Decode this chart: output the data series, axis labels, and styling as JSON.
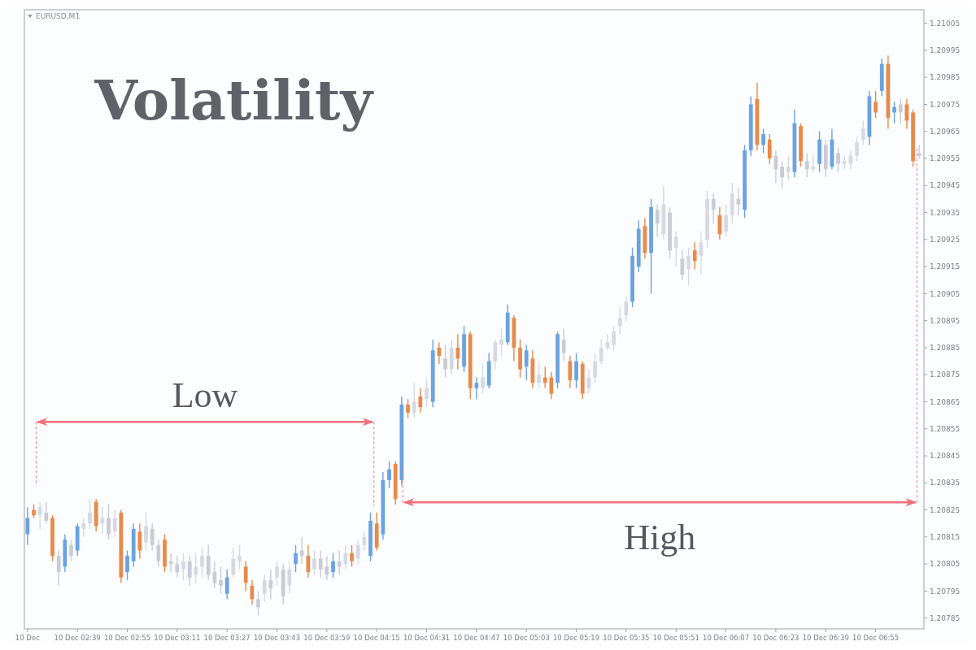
{
  "chart_data": {
    "type": "candlestick",
    "title": "Volatility",
    "subtitle": "EURUSD,M1",
    "annotations": [
      "Low",
      "High"
    ],
    "categories": [
      "10 Dec",
      null,
      null,
      null,
      null,
      null,
      null,
      null,
      "10 Dec 02:39",
      null,
      null,
      null,
      null,
      null,
      null,
      null,
      "10 Dec 02:55",
      null,
      null,
      null,
      null,
      null,
      null,
      null,
      "10 Dec 03:11",
      null,
      null,
      null,
      null,
      null,
      null,
      null,
      "10 Dec 03:27",
      null,
      null,
      null,
      null,
      null,
      null,
      null,
      "10 Dec 03:43",
      null,
      null,
      null,
      null,
      null,
      null,
      null,
      "10 Dec 03:59",
      null,
      null,
      null,
      null,
      null,
      null,
      null,
      "10 Dec 04:15",
      null,
      null,
      null,
      null,
      null,
      null,
      null,
      "10 Dec 04:31",
      null,
      null,
      null,
      null,
      null,
      null,
      null,
      "10 Dec 04:47",
      null,
      null,
      null,
      null,
      null,
      null,
      null,
      "10 Dec 05:03",
      null,
      null,
      null,
      null,
      null,
      null,
      null,
      "10 Dec 05:19",
      null,
      null,
      null,
      null,
      null,
      null,
      null,
      "10 Dec 05:35",
      null,
      null,
      null,
      null,
      null,
      null,
      null,
      "10 Dec 05:51",
      null,
      null,
      null,
      null,
      null,
      null,
      null,
      "10 Dec 06:07",
      null,
      null,
      null,
      null,
      null,
      null,
      null,
      "10 Dec 06:23",
      null,
      null,
      null,
      null,
      null,
      null,
      null,
      "10 Dec 06:39",
      null,
      null,
      null,
      null,
      null,
      null,
      null,
      "10 Dec 06:55",
      null,
      null,
      null,
      null,
      null,
      null,
      null
    ],
    "ohlc": [
      [
        1.20816,
        1.20826,
        1.20812,
        1.20822
      ],
      [
        1.20825,
        1.20827,
        1.20822,
        1.20823
      ],
      [
        1.20823,
        1.20828,
        1.20818,
        1.20826
      ],
      [
        1.20824,
        1.20828,
        1.2082,
        1.20821
      ],
      [
        1.20822,
        1.20823,
        1.20806,
        1.20808
      ],
      [
        1.20808,
        1.2081,
        1.20797,
        1.20802
      ],
      [
        1.20804,
        1.20816,
        1.20802,
        1.20814
      ],
      [
        1.20812,
        1.20814,
        1.20806,
        1.20808
      ],
      [
        1.2081,
        1.2082,
        1.20808,
        1.20819
      ],
      [
        1.20818,
        1.20822,
        1.20815,
        1.2082
      ],
      [
        1.2082,
        1.20829,
        1.20818,
        1.20824
      ],
      [
        1.20828,
        1.20829,
        1.20817,
        1.20819
      ],
      [
        1.2082,
        1.20826,
        1.20816,
        1.20822
      ],
      [
        1.20822,
        1.20827,
        1.20814,
        1.20816
      ],
      [
        1.20817,
        1.20825,
        1.20815,
        1.20822
      ],
      [
        1.20824,
        1.20825,
        1.20798,
        1.208
      ],
      [
        1.20802,
        1.2081,
        1.20799,
        1.20808
      ],
      [
        1.20806,
        1.2082,
        1.20804,
        1.20818
      ],
      [
        1.20817,
        1.2082,
        1.20807,
        1.2081
      ],
      [
        1.20813,
        1.20824,
        1.2081,
        1.20819
      ],
      [
        1.20818,
        1.2082,
        1.2081,
        1.20812
      ],
      [
        1.20812,
        1.20814,
        1.20804,
        1.20806
      ],
      [
        1.20814,
        1.20816,
        1.20802,
        1.20804
      ],
      [
        1.20806,
        1.20809,
        1.20802,
        1.20805
      ],
      [
        1.20805,
        1.20808,
        1.208,
        1.20802
      ],
      [
        1.20803,
        1.20809,
        1.20799,
        1.20806
      ],
      [
        1.20806,
        1.20808,
        1.20797,
        1.208
      ],
      [
        1.20801,
        1.20809,
        1.20798,
        1.20804
      ],
      [
        1.20804,
        1.20811,
        1.208,
        1.20808
      ],
      [
        1.20808,
        1.20812,
        1.20799,
        1.20801
      ],
      [
        1.20802,
        1.20806,
        1.20796,
        1.20798
      ],
      [
        1.20799,
        1.20804,
        1.20794,
        1.20797
      ],
      [
        1.20794,
        1.20803,
        1.20792,
        1.208
      ],
      [
        1.20801,
        1.20811,
        1.208,
        1.20807
      ],
      [
        1.20806,
        1.20812,
        1.20803,
        1.20808
      ],
      [
        1.20804,
        1.20806,
        1.20795,
        1.20798
      ],
      [
        1.20797,
        1.20799,
        1.2079,
        1.20792
      ],
      [
        1.20792,
        1.20795,
        1.20786,
        1.20789
      ],
      [
        1.20794,
        1.20801,
        1.20791,
        1.20799
      ],
      [
        1.20799,
        1.20803,
        1.20792,
        1.20796
      ],
      [
        1.208,
        1.20806,
        1.20797,
        1.20804
      ],
      [
        1.20803,
        1.20805,
        1.2079,
        1.20793
      ],
      [
        1.20797,
        1.20806,
        1.20794,
        1.20803
      ],
      [
        1.20805,
        1.20812,
        1.20802,
        1.20809
      ],
      [
        1.2081,
        1.20815,
        1.20805,
        1.20808
      ],
      [
        1.20808,
        1.20812,
        1.208,
        1.20802
      ],
      [
        1.20803,
        1.2081,
        1.20801,
        1.20807
      ],
      [
        1.20807,
        1.2081,
        1.208,
        1.20803
      ],
      [
        1.20804,
        1.20808,
        1.20799,
        1.20801
      ],
      [
        1.20802,
        1.20809,
        1.208,
        1.20806
      ],
      [
        1.20806,
        1.2081,
        1.20801,
        1.20804
      ],
      [
        1.20805,
        1.20812,
        1.20803,
        1.20809
      ],
      [
        1.20809,
        1.20812,
        1.20804,
        1.20806
      ],
      [
        1.20807,
        1.20814,
        1.20805,
        1.20812
      ],
      [
        1.20812,
        1.20817,
        1.2081,
        1.20815
      ],
      [
        1.20808,
        1.20824,
        1.20806,
        1.20821
      ],
      [
        1.2082,
        1.20824,
        1.2081,
        1.20811
      ],
      [
        1.20816,
        1.20839,
        1.20814,
        1.20836
      ],
      [
        1.20836,
        1.20843,
        1.20833,
        1.2084
      ],
      [
        1.20842,
        1.20843,
        1.20827,
        1.20829
      ],
      [
        1.20836,
        1.20867,
        1.20834,
        1.20864
      ],
      [
        1.20864,
        1.20866,
        1.20859,
        1.20861
      ],
      [
        1.20861,
        1.20872,
        1.20859,
        1.20865
      ],
      [
        1.20867,
        1.2087,
        1.20861,
        1.20863
      ],
      [
        1.20866,
        1.20874,
        1.20863,
        1.2087
      ],
      [
        1.20865,
        1.20888,
        1.20863,
        1.20884
      ],
      [
        1.20885,
        1.20887,
        1.20879,
        1.20882
      ],
      [
        1.20881,
        1.20886,
        1.20874,
        1.20877
      ],
      [
        1.20877,
        1.20888,
        1.20875,
        1.20885
      ],
      [
        1.20885,
        1.2089,
        1.20877,
        1.20881
      ],
      [
        1.20878,
        1.20893,
        1.20876,
        1.2089
      ],
      [
        1.2089,
        1.20891,
        1.20866,
        1.2087
      ],
      [
        1.2087,
        1.20874,
        1.20866,
        1.20872
      ],
      [
        1.2087,
        1.20879,
        1.20868,
        1.20874
      ],
      [
        1.20871,
        1.20883,
        1.2087,
        1.2088
      ],
      [
        1.2088,
        1.20888,
        1.20877,
        1.20887
      ],
      [
        1.20886,
        1.20892,
        1.20882,
        1.20888
      ],
      [
        1.20887,
        1.20901,
        1.20886,
        1.20898
      ],
      [
        1.20896,
        1.20897,
        1.2088,
        1.20885
      ],
      [
        1.20885,
        1.20888,
        1.20874,
        1.20877
      ],
      [
        1.20878,
        1.20886,
        1.20873,
        1.20884
      ],
      [
        1.20881,
        1.20884,
        1.2087,
        1.20872
      ],
      [
        1.20872,
        1.2088,
        1.2087,
        1.20875
      ],
      [
        1.20874,
        1.20878,
        1.2087,
        1.20872
      ],
      [
        1.20874,
        1.20876,
        1.20866,
        1.20868
      ],
      [
        1.20872,
        1.20891,
        1.2087,
        1.2089
      ],
      [
        1.20888,
        1.20892,
        1.2088,
        1.20883
      ],
      [
        1.2088,
        1.20882,
        1.2087,
        1.20873
      ],
      [
        1.20873,
        1.20883,
        1.2087,
        1.2088
      ],
      [
        1.20879,
        1.2088,
        1.20866,
        1.20868
      ],
      [
        1.2087,
        1.20877,
        1.20868,
        1.20874
      ],
      [
        1.20874,
        1.20883,
        1.20872,
        1.2088
      ],
      [
        1.2088,
        1.20888,
        1.20879,
        1.20885
      ],
      [
        1.20885,
        1.2089,
        1.20884,
        1.20887
      ],
      [
        1.20886,
        1.20893,
        1.20884,
        1.20891
      ],
      [
        1.20893,
        1.209,
        1.2089,
        1.20896
      ],
      [
        1.20897,
        1.20904,
        1.20895,
        1.20902
      ],
      [
        1.20902,
        1.20922,
        1.209,
        1.20919
      ],
      [
        1.20915,
        1.20932,
        1.20913,
        1.20929
      ],
      [
        1.2093,
        1.20933,
        1.20918,
        1.2092
      ],
      [
        1.2092,
        1.2094,
        1.20905,
        1.20937
      ],
      [
        1.20936,
        1.20938,
        1.20926,
        1.20931
      ],
      [
        1.20927,
        1.20945,
        1.20925,
        1.20938
      ],
      [
        1.20935,
        1.20937,
        1.20918,
        1.20921
      ],
      [
        1.20922,
        1.20928,
        1.20915,
        1.20926
      ],
      [
        1.20918,
        1.20921,
        1.2091,
        1.20912
      ],
      [
        1.20914,
        1.20922,
        1.20908,
        1.20919
      ],
      [
        1.20921,
        1.20924,
        1.20914,
        1.20917
      ],
      [
        1.20919,
        1.20928,
        1.20912,
        1.20924
      ],
      [
        1.20925,
        1.20943,
        1.20922,
        1.2094
      ],
      [
        1.2094,
        1.20942,
        1.20931,
        1.20936
      ],
      [
        1.20934,
        1.20937,
        1.20925,
        1.20927
      ],
      [
        1.20928,
        1.20938,
        1.20926,
        1.20934
      ],
      [
        1.20934,
        1.20946,
        1.20931,
        1.20942
      ],
      [
        1.2094,
        1.20944,
        1.20934,
        1.20938
      ],
      [
        1.20936,
        1.2096,
        1.20933,
        1.20958
      ],
      [
        1.20958,
        1.20978,
        1.20956,
        1.20975
      ],
      [
        1.20977,
        1.20983,
        1.20958,
        1.2096
      ],
      [
        1.2096,
        1.20966,
        1.20957,
        1.20964
      ],
      [
        1.20962,
        1.20964,
        1.20953,
        1.20955
      ],
      [
        1.20956,
        1.20958,
        1.20946,
        1.20951
      ],
      [
        1.20952,
        1.20954,
        1.20944,
        1.20948
      ],
      [
        1.2095,
        1.20956,
        1.20947,
        1.20952
      ],
      [
        1.2095,
        1.20973,
        1.20948,
        1.20968
      ],
      [
        1.20967,
        1.20968,
        1.20952,
        1.20954
      ],
      [
        1.20954,
        1.20957,
        1.20948,
        1.20951
      ],
      [
        1.20951,
        1.20956,
        1.2095,
        1.20952
      ],
      [
        1.20953,
        1.20965,
        1.2095,
        1.20962
      ],
      [
        1.2096,
        1.20962,
        1.20948,
        1.20951
      ],
      [
        1.20952,
        1.20966,
        1.20951,
        1.20962
      ],
      [
        1.20957,
        1.20959,
        1.2095,
        1.20953
      ],
      [
        1.20953,
        1.20956,
        1.20951,
        1.20954
      ],
      [
        1.20953,
        1.20958,
        1.20951,
        1.20956
      ],
      [
        1.20956,
        1.20963,
        1.20954,
        1.20961
      ],
      [
        1.20962,
        1.20969,
        1.2096,
        1.20966
      ],
      [
        1.20963,
        1.2098,
        1.2096,
        1.20978
      ],
      [
        1.20976,
        1.2098,
        1.2097,
        1.20972
      ],
      [
        1.2098,
        1.20992,
        1.20978,
        1.2099
      ],
      [
        1.2099,
        1.20993,
        1.20966,
        1.2097
      ],
      [
        1.20972,
        1.20976,
        1.20968,
        1.20974
      ],
      [
        1.20975,
        1.20977,
        1.20968,
        1.20972
      ],
      [
        1.20975,
        1.20977,
        1.20966,
        1.20969
      ],
      [
        1.20972,
        1.20973,
        1.20952,
        1.20954
      ],
      [
        1.20957,
        1.2096,
        1.20955,
        1.20956
      ]
    ],
    "colors": [
      "#6aa3df",
      "#e88a4a",
      "#d6d9e3",
      "#c9ccd6",
      "#e88a4a",
      "#c9ccd6",
      "#6aa3df",
      "#c9ccd6",
      "#6aa3df",
      "#d6d9e3",
      "#d6d9e3",
      "#e88a4a",
      "#d6d9e3",
      "#c9ccd6",
      "#d6d9e3",
      "#e88a4a",
      "#6aa3df",
      "#6aa3df",
      "#e88a4a",
      "#d6d9e3",
      "#c9ccd6",
      "#c9ccd6",
      "#e88a4a",
      "#c9ccd6",
      "#c9ccd6",
      "#d6d9e3",
      "#c9ccd6",
      "#d6d9e3",
      "#d6d9e3",
      "#c9ccd6",
      "#c9ccd6",
      "#c9ccd6",
      "#6aa3df",
      "#d6d9e3",
      "#d6d9e3",
      "#e88a4a",
      "#e88a4a",
      "#c9ccd6",
      "#d6d9e3",
      "#c9ccd6",
      "#d6d9e3",
      "#c9ccd6",
      "#d6d9e3",
      "#6aa3df",
      "#c9ccd6",
      "#e88a4a",
      "#d6d9e3",
      "#c9ccd6",
      "#c9ccd6",
      "#6aa3df",
      "#c9ccd6",
      "#d6d9e3",
      "#e88a4a",
      "#d6d9e3",
      "#d6d9e3",
      "#6aa3df",
      "#e88a4a",
      "#6aa3df",
      "#6aa3df",
      "#e88a4a",
      "#6aa3df",
      "#e88a4a",
      "#d6d9e3",
      "#e88a4a",
      "#d6d9e3",
      "#6aa3df",
      "#e88a4a",
      "#c9ccd6",
      "#d6d9e3",
      "#e88a4a",
      "#6aa3df",
      "#e88a4a",
      "#6aa3df",
      "#d6d9e3",
      "#6aa3df",
      "#d6d9e3",
      "#d6d9e3",
      "#6aa3df",
      "#e88a4a",
      "#e88a4a",
      "#6aa3df",
      "#e88a4a",
      "#d6d9e3",
      "#e88a4a",
      "#e88a4a",
      "#6aa3df",
      "#c9ccd6",
      "#e88a4a",
      "#6aa3df",
      "#e88a4a",
      "#d6d9e3",
      "#d6d9e3",
      "#d6d9e3",
      "#d6d9e3",
      "#d6d9e3",
      "#d6d9e3",
      "#d6d9e3",
      "#6aa3df",
      "#6aa3df",
      "#e88a4a",
      "#6aa3df",
      "#c9ccd6",
      "#d6d9e3",
      "#c9ccd6",
      "#d6d9e3",
      "#c9ccd6",
      "#d6d9e3",
      "#e88a4a",
      "#d6d9e3",
      "#d6d9e3",
      "#c9ccd6",
      "#e88a4a",
      "#d6d9e3",
      "#d6d9e3",
      "#c9ccd6",
      "#6aa3df",
      "#6aa3df",
      "#e88a4a",
      "#6aa3df",
      "#e88a4a",
      "#c9ccd6",
      "#c9ccd6",
      "#d6d9e3",
      "#6aa3df",
      "#e88a4a",
      "#c9ccd6",
      "#d6d9e3",
      "#6aa3df",
      "#c9ccd6",
      "#6aa3df",
      "#c9ccd6",
      "#d6d9e3",
      "#d6d9e3",
      "#d6d9e3",
      "#d6d9e3",
      "#6aa3df",
      "#e88a4a",
      "#6aa3df",
      "#e88a4a",
      "#6aa3df",
      "#c9ccd6",
      "#e88a4a",
      "#e88a4a",
      "#c9ccd6"
    ],
    "ylim": [
      1.20781,
      1.2101
    ],
    "yticks": [
      1.20785,
      1.20795,
      1.20805,
      1.20815,
      1.20825,
      1.20835,
      1.20845,
      1.20855,
      1.20865,
      1.20875,
      1.20885,
      1.20895,
      1.20905,
      1.20915,
      1.20925,
      1.20935,
      1.20945,
      1.20955,
      1.20965,
      1.20975,
      1.20985,
      1.20995,
      1.21005
    ]
  }
}
